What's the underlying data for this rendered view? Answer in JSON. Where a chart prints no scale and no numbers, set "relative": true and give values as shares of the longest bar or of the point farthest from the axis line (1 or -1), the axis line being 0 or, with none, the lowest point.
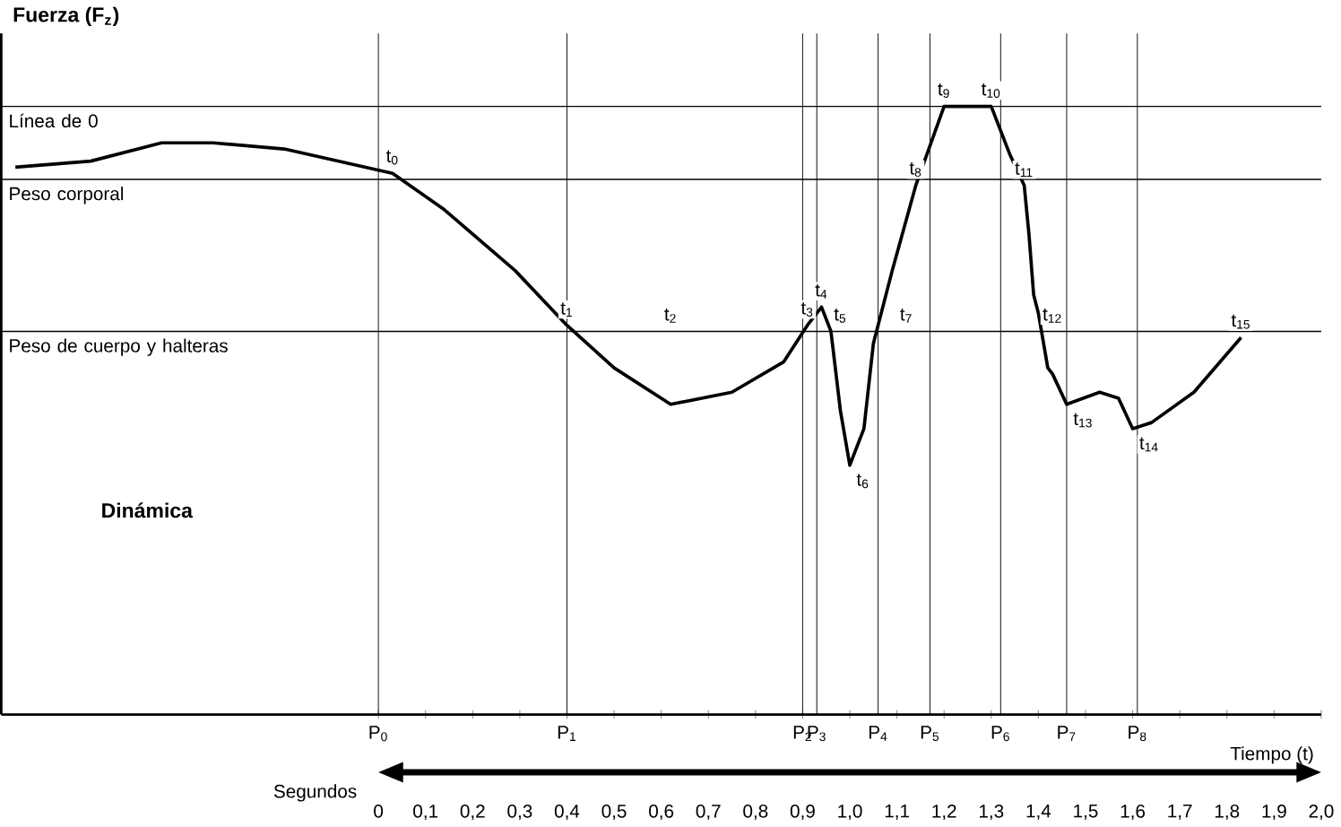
{
  "chart_data": {
    "type": "line",
    "relative": true,
    "ylabel": "Fuerza (F$_{z}$)",
    "xlabel": "Tiempo (t)",
    "grid": false,
    "marker": "none",
    "line_style": "solid",
    "xlim": [
      -0.8,
      2.0
    ],
    "xticks": [
      0,
      {
        "value": 0.1,
        "label": "0,1"
      },
      {
        "value": 0.2,
        "label": "0,2"
      },
      {
        "value": 0.3,
        "label": "0,3"
      },
      {
        "value": 0.4,
        "label": "0,4"
      },
      {
        "value": 0.5,
        "label": "0,5"
      },
      {
        "value": 0.6,
        "label": "0,6"
      },
      {
        "value": 0.7,
        "label": "0,7"
      },
      {
        "value": 0.8,
        "label": "0,8"
      },
      {
        "value": 0.9,
        "label": "0,9"
      },
      {
        "value": 1.0,
        "label": "1,0"
      },
      {
        "value": 1.1,
        "label": "1,1"
      },
      {
        "value": 1.2,
        "label": "1,2"
      },
      {
        "value": 1.3,
        "label": "1,3"
      },
      {
        "value": 1.4,
        "label": "1,4"
      },
      {
        "value": 1.5,
        "label": "1,5"
      },
      {
        "value": 1.6,
        "label": "1,6"
      },
      {
        "value": 1.7,
        "label": "1,7"
      },
      {
        "value": 1.8,
        "label": "1,8"
      },
      {
        "value": 1.9,
        "label": "1,9"
      },
      {
        "value": 2.0,
        "label": "2,0"
      }
    ],
    "series": [
      {
        "color": "#000000",
        "x": [
          -0.77,
          -0.61,
          -0.46,
          -0.35,
          -0.2,
          0.03,
          0.14,
          0.29,
          0.4,
          0.5,
          0.62,
          0.75,
          0.86,
          0.91,
          0.94,
          0.96,
          0.98,
          1.0,
          1.03,
          1.05,
          1.09,
          1.14,
          1.2,
          1.3,
          1.34,
          1.37,
          1.38,
          1.39,
          1.4,
          1.42,
          1.43,
          1.46,
          1.53,
          1.57,
          1.6,
          1.64,
          1.73,
          1.83
        ],
        "values": [
          0.9,
          0.91,
          0.94,
          0.94,
          0.93,
          0.89,
          0.83,
          0.73,
          0.64,
          0.57,
          0.51,
          0.53,
          0.58,
          0.64,
          0.67,
          0.63,
          0.5,
          0.41,
          0.47,
          0.61,
          0.73,
          0.87,
          1.0,
          1.0,
          0.92,
          0.87,
          0.79,
          0.69,
          0.66,
          0.57,
          0.56,
          0.51,
          0.53,
          0.52,
          0.47,
          0.48,
          0.53,
          0.62
        ]
      }
    ],
    "ref_lines": [
      {
        "axis": "y",
        "value": 1.0,
        "label": "Línea de 0",
        "color": "#000000"
      },
      {
        "axis": "y",
        "value": 0.88,
        "label": "Peso corporal",
        "color": "#000000"
      },
      {
        "axis": "y",
        "value": 0.63,
        "label": "Peso de cuerpo y halteras",
        "color": "#000000"
      },
      {
        "axis": "x",
        "value": 0,
        "label": "P$_{0}$",
        "color": "#000000"
      },
      {
        "axis": "x",
        "value": 0.4,
        "label": "P$_{1}$",
        "color": "#000000"
      },
      {
        "axis": "x",
        "value": 0.9,
        "label": "P$_{2}$",
        "color": "#000000"
      },
      {
        "axis": "x",
        "value": 0.93,
        "label": "P$_{3}$",
        "color": "#000000"
      },
      {
        "axis": "x",
        "value": 1.06,
        "label": "P$_{4}$",
        "color": "#000000"
      },
      {
        "axis": "x",
        "value": 1.17,
        "label": "P$_{5}$",
        "color": "#000000"
      },
      {
        "axis": "x",
        "value": 1.32,
        "label": "P$_{6}$",
        "color": "#000000"
      },
      {
        "axis": "x",
        "value": 1.46,
        "label": "P$_{7}$",
        "color": "#000000"
      },
      {
        "axis": "x",
        "value": 1.61,
        "label": "P$_{8}$",
        "color": "#000000"
      }
    ],
    "annotations": [
      "Dinámica",
      "Segundos",
      {
        "text": "t$_{0}$",
        "x": 0.03,
        "y": 0.89
      },
      {
        "text": "t$_{1}$",
        "x": 0.4,
        "y": 0.64
      },
      {
        "text": "t$_{2}$",
        "x": 0.62,
        "y": 0.63
      },
      {
        "text": "t$_{3}$",
        "x": 0.91,
        "y": 0.64
      },
      {
        "text": "t$_{4}$",
        "x": 0.94,
        "y": 0.67
      },
      {
        "text": "t$_{5}$",
        "x": 0.98,
        "y": 0.63
      },
      {
        "text": "t$_{6}$",
        "x": 1.0,
        "y": 0.41
      },
      {
        "text": "t$_{7}$",
        "x": 1.12,
        "y": 0.63
      },
      {
        "text": "t$_{8}$",
        "x": 1.14,
        "y": 0.87
      },
      {
        "text": "t$_{9}$",
        "x": 1.2,
        "y": 1.0
      },
      {
        "text": "t$_{10}$",
        "x": 1.3,
        "y": 1.0
      },
      {
        "text": "t$_{11}$",
        "x": 1.37,
        "y": 0.87
      },
      {
        "text": "t$_{12}$",
        "x": 1.43,
        "y": 0.63
      },
      {
        "text": "t$_{13}$",
        "x": 1.46,
        "y": 0.51
      },
      {
        "text": "t$_{14}$",
        "x": 1.6,
        "y": 0.47
      },
      {
        "text": "t$_{15}$",
        "x": 1.83,
        "y": 0.62
      }
    ]
  }
}
